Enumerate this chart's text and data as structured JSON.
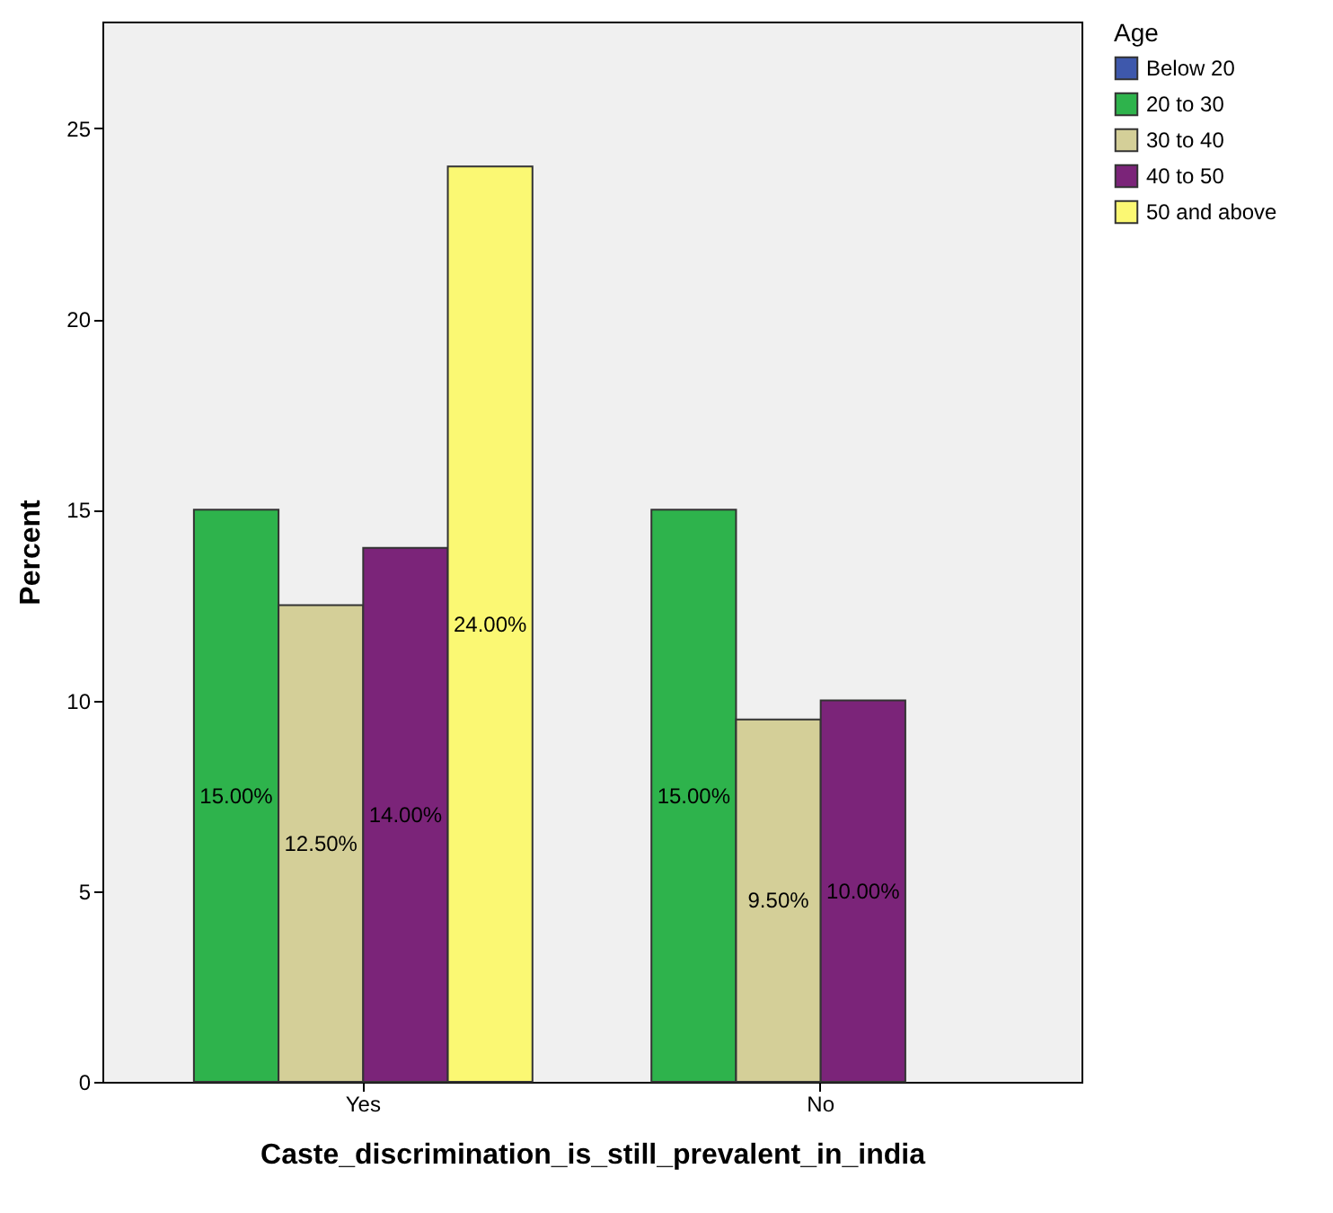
{
  "chart_data": {
    "type": "bar",
    "xlabel": "Caste_discrimination_is_still_prevalent_in_india",
    "ylabel": "Percent",
    "legend_title": "Age",
    "legend": "top right",
    "categories": [
      "Yes",
      "No"
    ],
    "series": [
      {
        "name": "Below 20",
        "color": "#3e58ac",
        "values": [
          null,
          null
        ]
      },
      {
        "name": "20 to 30",
        "color": "#2eb34c",
        "values": [
          15,
          15
        ],
        "value_labels": [
          "15.00%",
          "15.00%"
        ]
      },
      {
        "name": "30 to 40",
        "color": "#d4cf98",
        "values": [
          12.5,
          9.5
        ],
        "value_labels": [
          "12.50%",
          "9.50%"
        ]
      },
      {
        "name": "40 to 50",
        "color": "#7b2479",
        "values": [
          14,
          10
        ],
        "value_labels": [
          "14.00%",
          "10.00%"
        ]
      },
      {
        "name": "50 and above",
        "color": "#fbf873",
        "values": [
          24,
          null
        ],
        "value_labels": [
          "24.00%",
          null
        ]
      }
    ],
    "ylim": [
      0,
      27.8
    ],
    "yticks": [
      0,
      5,
      10,
      15,
      20,
      25
    ],
    "grid": false
  }
}
